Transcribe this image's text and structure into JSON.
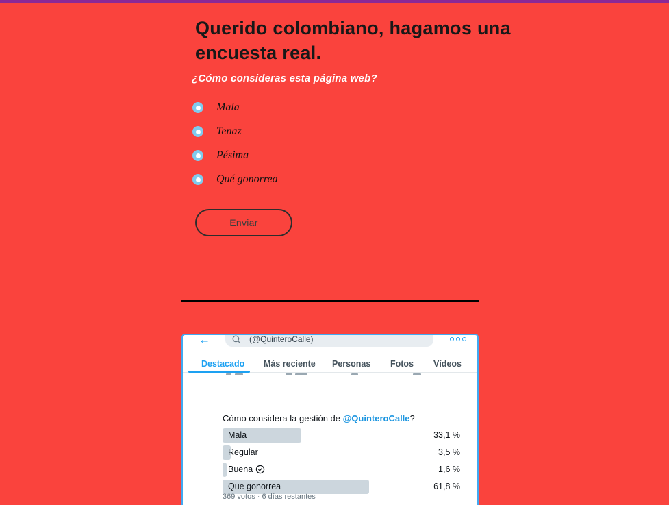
{
  "theme": {
    "background": "#fa433d",
    "top_bar": "#8c2896",
    "accent_blue": "#1da1f2",
    "poll_bar": "#ccd6dd"
  },
  "survey": {
    "title": "Querido colombiano, hagamos una encuesta real.",
    "question": "¿Cómo consideras esta página web?",
    "options": [
      {
        "label": "Mala"
      },
      {
        "label": "Tenaz"
      },
      {
        "label": "Pésima"
      },
      {
        "label": "Qué gonorrea"
      }
    ],
    "submit_label": "Enviar"
  },
  "twitter": {
    "search": {
      "value": "(@QuinteroCalle)"
    },
    "tabs": [
      {
        "label": "Destacado"
      },
      {
        "label": "Más reciente"
      },
      {
        "label": "Personas"
      },
      {
        "label": "Fotos"
      },
      {
        "label": "Vídeos"
      }
    ],
    "poll": {
      "question_prefix": "Cómo considera la gestión de ",
      "question_handle": "@QuinteroCalle",
      "question_suffix": "?",
      "options": [
        {
          "label": "Mala",
          "percent": 33.1,
          "percent_label": "33,1 %"
        },
        {
          "label": "Regular",
          "percent": 3.5,
          "percent_label": "3,5 %"
        },
        {
          "label": "Buena",
          "percent": 1.6,
          "percent_label": "1,6 %",
          "voted": true
        },
        {
          "label": "Que gonorrea",
          "percent": 61.8,
          "percent_label": "61,8 %"
        }
      ],
      "footer": "369 votos · 6 días restantes"
    }
  }
}
